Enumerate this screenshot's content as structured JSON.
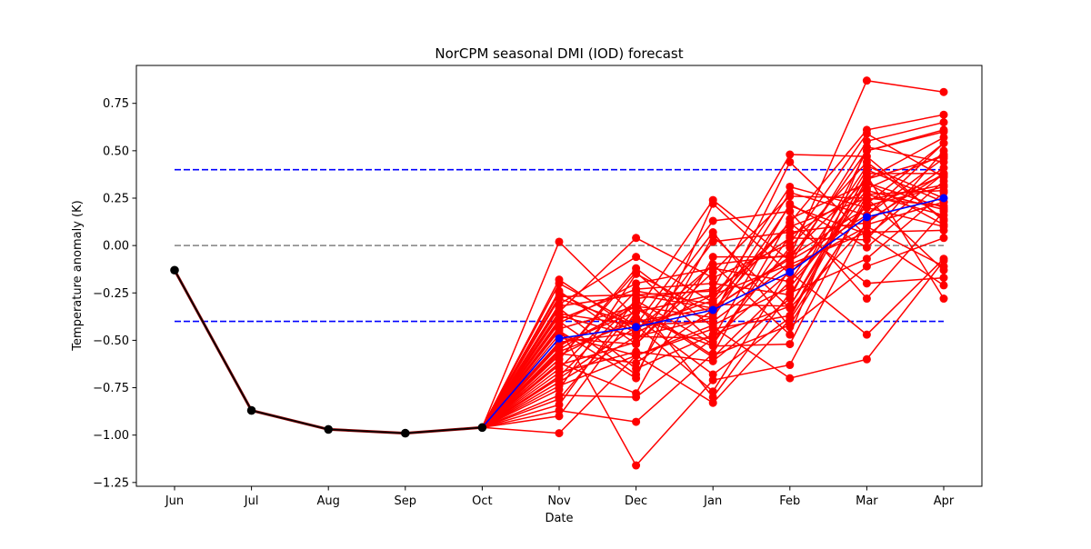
{
  "chart_data": {
    "type": "line",
    "title": "NorCPM seasonal DMI (IOD) forecast",
    "xlabel": "Date",
    "ylabel": "Temperature anomaly (K)",
    "categories": [
      "Jun",
      "Jul",
      "Aug",
      "Sep",
      "Oct",
      "Nov",
      "Dec",
      "Jan",
      "Feb",
      "Mar",
      "Apr"
    ],
    "ylim": [
      -1.27,
      0.95
    ],
    "yticks": [
      -1.25,
      -1.0,
      -0.75,
      -0.5,
      -0.25,
      0.0,
      0.25,
      0.5,
      0.75
    ],
    "ytick_labels": [
      "−1.25",
      "−1.00",
      "−0.75",
      "−0.50",
      "−0.25",
      "0.00",
      "0.25",
      "0.50",
      "0.75"
    ],
    "grid": false,
    "legend": "none",
    "colors": {
      "ensemble": "#ff0000",
      "mean": "#0000ff",
      "observed": "#000000",
      "threshold": "#0000ff",
      "zero": "#808080"
    },
    "reference_lines": [
      {
        "y": 0.4,
        "style": "dashed",
        "color": "#0000ff"
      },
      {
        "y": -0.4,
        "style": "dashed",
        "color": "#0000ff"
      },
      {
        "y": 0.0,
        "style": "dashed",
        "color": "#808080"
      }
    ],
    "observed": {
      "values": [
        -0.13,
        -0.87,
        -0.97,
        -0.99,
        -0.96
      ]
    },
    "ensemble_mean": {
      "values": [
        -0.49,
        -0.43,
        -0.34,
        -0.14,
        0.15,
        0.25
      ]
    },
    "ensemble": [
      [
        -0.96,
        0.02,
        -0.38,
        -0.68,
        -0.38,
        0.35,
        0.57
      ],
      [
        -0.96,
        -0.18,
        -0.45,
        -0.1,
        -0.05,
        0.35,
        0.47
      ],
      [
        -0.96,
        -0.2,
        -0.42,
        -0.4,
        -0.1,
        0.07,
        0.08
      ],
      [
        -0.96,
        -0.24,
        -0.52,
        -0.14,
        0.26,
        0.25,
        0.21
      ],
      [
        -0.96,
        -0.27,
        -0.26,
        -0.24,
        0.04,
        0.03,
        0.5
      ],
      [
        -0.96,
        -0.28,
        -0.42,
        -0.77,
        -0.12,
        0.1,
        -0.11
      ],
      [
        -0.96,
        -0.32,
        -0.26,
        -0.33,
        -0.07,
        0.5,
        0.61
      ],
      [
        -0.96,
        -0.35,
        0.04,
        -0.17,
        0.01,
        0.59,
        0.36
      ],
      [
        -0.96,
        -0.37,
        -0.48,
        -0.38,
        0.44,
        0.05,
        0.38
      ],
      [
        -0.96,
        -0.4,
        -0.68,
        0.05,
        -0.33,
        0.11,
        0.23
      ],
      [
        -0.96,
        -0.45,
        -0.7,
        0.22,
        -0.15,
        0.29,
        0.19
      ],
      [
        -0.96,
        -0.49,
        -0.52,
        -0.1,
        -0.47,
        0.52,
        0.44
      ],
      [
        -0.96,
        -0.52,
        -0.35,
        -0.26,
        0.1,
        0.25,
        -0.13
      ],
      [
        -0.96,
        -0.55,
        -0.3,
        -0.8,
        -0.25,
        -0.07,
        0.28
      ],
      [
        -0.96,
        -0.56,
        -0.4,
        -0.33,
        -0.06,
        0.87,
        0.81
      ],
      [
        -0.96,
        -0.58,
        -0.38,
        -0.53,
        -0.52,
        0.27,
        0.16
      ],
      [
        -0.96,
        -0.6,
        -0.12,
        -0.43,
        -0.7,
        -0.6,
        -0.08
      ],
      [
        -0.96,
        -0.62,
        -0.78,
        -0.06,
        -0.06,
        0.2,
        0.37
      ],
      [
        -0.96,
        -0.63,
        -0.51,
        0.02,
        0.07,
        0.12,
        0.41
      ],
      [
        -0.96,
        -0.65,
        -0.24,
        -0.31,
        -0.32,
        0.33,
        0.2
      ],
      [
        -0.96,
        -0.67,
        -0.56,
        -0.61,
        -0.28,
        0.5,
        0.6
      ],
      [
        -0.96,
        -0.7,
        -0.43,
        -0.29,
        0.31,
        0.2,
        0.1
      ],
      [
        -0.96,
        -0.72,
        -0.48,
        -0.49,
        -0.14,
        -0.47,
        -0.07
      ],
      [
        -0.96,
        -0.74,
        -0.58,
        -0.44,
        -0.37,
        0.38,
        0.38
      ],
      [
        -0.96,
        -0.76,
        -0.15,
        -0.36,
        0.28,
        0.16,
        0.46
      ],
      [
        -0.96,
        -0.79,
        -0.8,
        -0.49,
        0.22,
        -0.01,
        0.34
      ],
      [
        -0.96,
        -0.81,
        -0.33,
        -0.59,
        -0.19,
        0.42,
        0.25
      ],
      [
        -0.96,
        -0.84,
        -0.28,
        -0.23,
        0.48,
        0.47,
        0.13
      ],
      [
        -0.96,
        -0.87,
        -0.93,
        -0.57,
        0.14,
        0.33,
        0.11
      ],
      [
        -0.96,
        -0.9,
        -0.35,
        0.24,
        -0.08,
        0.16,
        0.54
      ],
      [
        -0.96,
        -0.99,
        -0.58,
        -0.42,
        -0.22,
        0.27,
        0.29
      ],
      [
        -0.96,
        -0.43,
        -1.16,
        -0.71,
        -0.63,
        0.13,
        0.38
      ],
      [
        -0.96,
        -0.47,
        -0.58,
        -0.83,
        -0.39,
        0.22,
        0.54
      ],
      [
        -0.96,
        -0.33,
        -0.65,
        -0.47,
        -0.32,
        0.37,
        -0.28
      ],
      [
        -0.96,
        -0.36,
        -0.42,
        0.13,
        0.18,
        -0.28,
        0.18
      ],
      [
        -0.96,
        -0.41,
        -0.2,
        -0.12,
        -0.19,
        0.21,
        0.31
      ],
      [
        -0.96,
        -0.53,
        -0.32,
        -0.38,
        0.21,
        0.06,
        -0.21
      ],
      [
        -0.96,
        -0.25,
        -0.46,
        -0.26,
        -0.1,
        0.55,
        0.65
      ],
      [
        -0.96,
        -0.6,
        -0.14,
        -0.51,
        -0.01,
        0.44,
        0.14
      ],
      [
        -0.96,
        -0.31,
        -0.06,
        -0.3,
        0.12,
        0.61,
        0.69
      ],
      [
        -0.96,
        -0.44,
        -0.32,
        -0.58,
        -0.42,
        0.24,
        0.32
      ],
      [
        -0.96,
        -0.69,
        -0.29,
        -0.52,
        0.05,
        0.3,
        0.48
      ],
      [
        -0.96,
        -0.51,
        -0.46,
        0.07,
        -0.43,
        -0.11,
        0.04
      ],
      [
        -0.96,
        -0.39,
        -0.23,
        -0.2,
        -0.26,
        0.4,
        0.23
      ],
      [
        -0.96,
        -0.57,
        -0.62,
        -0.34,
        0.12,
        -0.2,
        -0.17
      ]
    ]
  }
}
